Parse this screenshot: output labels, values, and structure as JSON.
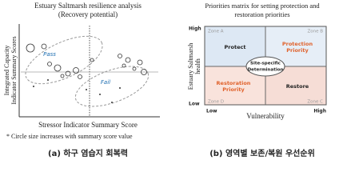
{
  "left_panel": {
    "title": [
      "Estuary Saltmarsh resilience analysis",
      "(Recovery potential)"
    ],
    "y_label": [
      "Integrated Capacity",
      "Indicator Summary Scores"
    ],
    "x_label": "Stressor Indicator Summary Score",
    "pass_label": "Pass",
    "fail_label": "Fail",
    "note": "* Circle size increases with summary score value",
    "caption": "(a) 하구 염습지 회복력"
  },
  "right_panel": {
    "title": [
      "Priorities matrix for setting protection and",
      "restoration priorities"
    ],
    "y_label": [
      "Estuary Saltmarsh",
      "health"
    ],
    "y_high": "High",
    "y_low": "Low",
    "x_label": "Vulnerability",
    "x_low": "Low",
    "x_high": "High",
    "zones": [
      "Zone A",
      "Zone B",
      "Zone D",
      "Zone C"
    ],
    "protect": "Protect",
    "protection_priority": [
      "Protection",
      "Priority"
    ],
    "center": [
      "Site-specific",
      "Determination"
    ],
    "restoration_priority": [
      "Restoration",
      "Priority"
    ],
    "restore": "Restore",
    "caption": "(b) 영역별 보존/복원 우선순위"
  }
}
